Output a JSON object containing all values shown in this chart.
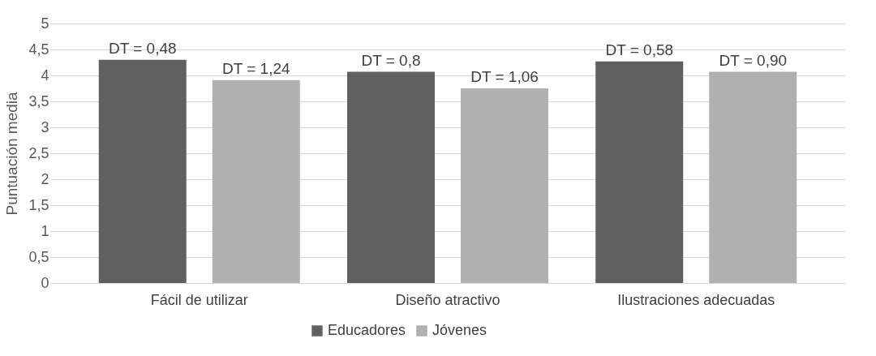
{
  "chart_data": {
    "type": "bar",
    "ylabel": "Puntuación media",
    "categories": [
      "Fácil de utilizar",
      "Diseño atractivo",
      "Ilustraciones adecuadas"
    ],
    "series": [
      {
        "name": "Educadores",
        "color": "#606060",
        "values": [
          4.3,
          4.07,
          4.27
        ]
      },
      {
        "name": "Jóvenes",
        "color": "#b0b0b0",
        "values": [
          3.91,
          3.75,
          4.07
        ]
      }
    ],
    "annotations": [
      "DT = 0,48",
      "DT = 1,24",
      "DT = 0,8",
      "DT = 1,06",
      "DT = 0,58",
      "DT = 0,90"
    ],
    "ylim": [
      0,
      5
    ],
    "yticks": [
      0,
      {
        "value": 0.5,
        "label": "0,5"
      },
      1,
      {
        "value": 1.5,
        "label": "1,5"
      },
      2,
      {
        "value": 2.5,
        "label": "2,5"
      },
      3,
      {
        "value": 3.5,
        "label": "3,5"
      },
      4,
      {
        "value": 4.5,
        "label": "4,5"
      },
      5
    ],
    "grid": "y",
    "legend": "bottom"
  }
}
